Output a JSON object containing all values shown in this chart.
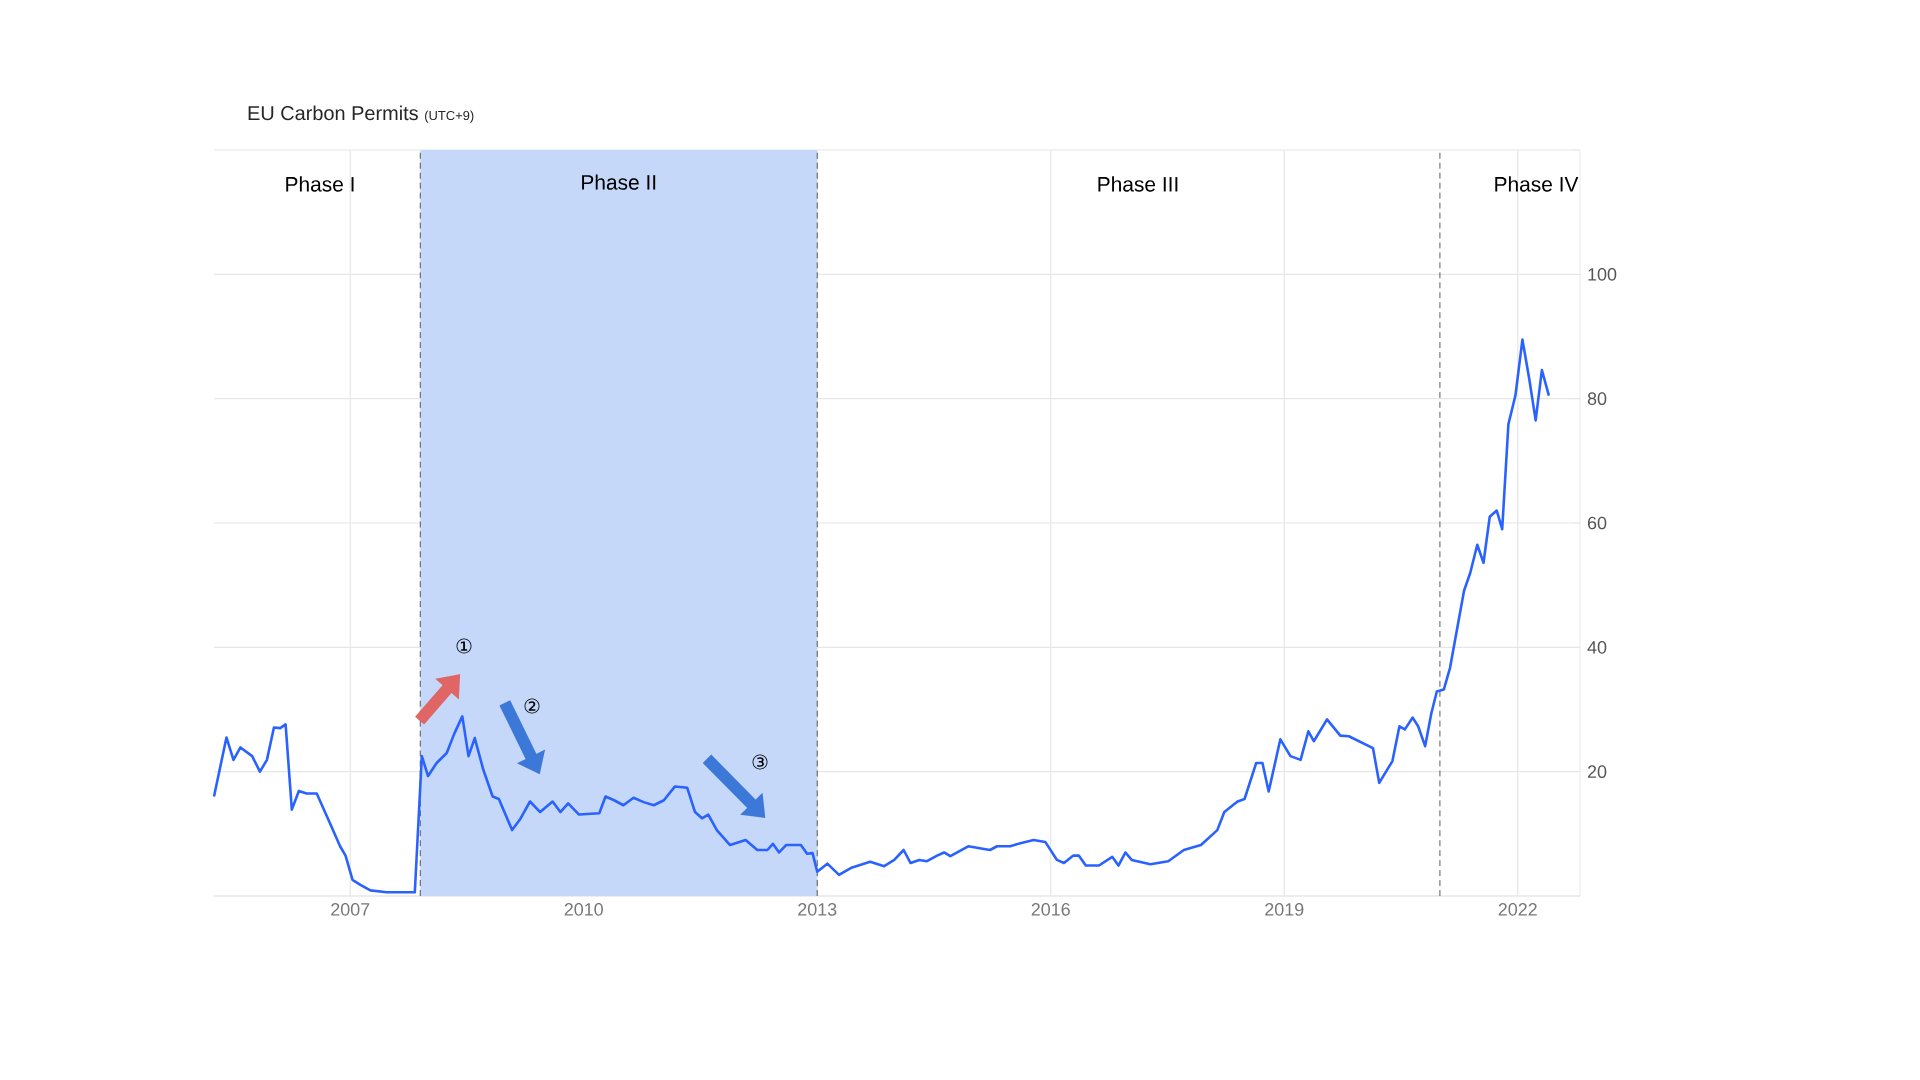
{
  "chart_data": {
    "type": "line",
    "title": "EU Carbon Permits",
    "subtitle": "(UTC+9)",
    "x": [
      2005.25,
      2005.41,
      2005.5,
      2005.59,
      2005.74,
      2005.84,
      2005.93,
      2006.02,
      2006.1,
      2006.17,
      2006.25,
      2006.34,
      2006.44,
      2006.57,
      2006.74,
      2006.87,
      2006.94,
      2007.03,
      2007.13,
      2007.26,
      2007.47,
      2007.83,
      2007.92,
      2008.0,
      2008.11,
      2008.24,
      2008.34,
      2008.44,
      2008.52,
      2008.6,
      2008.71,
      2008.83,
      2008.91,
      2009.08,
      2009.18,
      2009.31,
      2009.44,
      2009.6,
      2009.7,
      2009.8,
      2009.94,
      2010.2,
      2010.28,
      2010.39,
      2010.51,
      2010.64,
      2010.77,
      2010.9,
      2011.03,
      2011.17,
      2011.33,
      2011.43,
      2011.52,
      2011.6,
      2011.71,
      2011.88,
      2012.08,
      2012.23,
      2012.36,
      2012.43,
      2012.51,
      2012.6,
      2012.79,
      2012.87,
      2012.94,
      2013.0,
      2013.13,
      2013.28,
      2013.43,
      2013.68,
      2013.86,
      2013.99,
      2014.11,
      2014.2,
      2014.31,
      2014.41,
      2014.54,
      2014.63,
      2014.71,
      2014.94,
      2015.22,
      2015.31,
      2015.48,
      2015.61,
      2015.78,
      2015.93,
      2016.08,
      2016.17,
      2016.29,
      2016.36,
      2016.45,
      2016.62,
      2016.79,
      2016.87,
      2016.96,
      2017.04,
      2017.28,
      2017.51,
      2017.71,
      2017.93,
      2018.14,
      2018.23,
      2018.4,
      2018.49,
      2018.64,
      2018.72,
      2018.8,
      2018.95,
      2019.08,
      2019.21,
      2019.31,
      2019.38,
      2019.55,
      2019.72,
      2019.83,
      2020.14,
      2020.22,
      2020.39,
      2020.48,
      2020.55,
      2020.65,
      2020.72,
      2020.81,
      2020.89,
      2020.96,
      2021.05,
      2021.13,
      2021.22,
      2021.31,
      2021.39,
      2021.48,
      2021.56,
      2021.64,
      2021.73,
      2021.8,
      2021.88,
      2021.97,
      2022.06,
      2022.15,
      2022.23,
      2022.31,
      2022.4
    ],
    "series": [
      {
        "color": "#2962ff",
        "values": [
          16.0,
          25.5,
          21.9,
          23.9,
          22.5,
          20.0,
          21.9,
          27.1,
          27.0,
          27.6,
          13.9,
          16.9,
          16.5,
          16.5,
          11.7,
          8.0,
          6.5,
          2.6,
          1.8,
          0.9,
          0.6,
          0.6,
          22.5,
          19.3,
          21.4,
          23.0,
          26.2,
          28.9,
          22.5,
          25.4,
          20.3,
          16.0,
          15.6,
          10.6,
          12.3,
          15.2,
          13.5,
          15.2,
          13.5,
          14.9,
          13.1,
          13.3,
          16.0,
          15.4,
          14.6,
          15.8,
          15.1,
          14.6,
          15.4,
          17.6,
          17.4,
          13.5,
          12.5,
          13.1,
          10.6,
          8.2,
          9.0,
          7.4,
          7.4,
          8.4,
          7.0,
          8.2,
          8.2,
          6.8,
          6.9,
          3.9,
          5.2,
          3.4,
          4.5,
          5.5,
          4.8,
          5.8,
          7.4,
          5.3,
          5.8,
          5.6,
          6.5,
          7.0,
          6.4,
          8.0,
          7.4,
          8.0,
          8.0,
          8.5,
          9.0,
          8.7,
          5.8,
          5.3,
          6.5,
          6.5,
          4.9,
          4.9,
          6.3,
          4.9,
          7.0,
          5.8,
          5.1,
          5.6,
          7.4,
          8.2,
          10.6,
          13.5,
          15.2,
          15.6,
          21.4,
          21.4,
          16.8,
          25.2,
          22.5,
          21.9,
          26.5,
          24.9,
          28.4,
          25.8,
          25.7,
          23.8,
          18.2,
          21.7,
          27.3,
          26.8,
          28.7,
          27.3,
          24.1,
          29.4,
          32.9,
          33.2,
          36.7,
          42.9,
          49.1,
          52.0,
          56.5,
          53.6,
          61.0,
          62.0,
          59.0,
          75.9,
          80.5,
          89.5,
          83.0,
          76.5,
          84.6,
          80.5
        ]
      }
    ],
    "xlim": [
      2005.25,
      2022.8
    ],
    "xticks": [
      2007,
      2010,
      2013,
      2016,
      2019,
      2022
    ],
    "ylim": [
      0,
      120
    ],
    "yticks": [
      {
        "value": 0,
        "label": null
      },
      20,
      40,
      60,
      80,
      100,
      {
        "value": 120,
        "label": null
      }
    ],
    "grid": true,
    "marker": "none",
    "line_style": "solid",
    "bands": [
      {
        "axis": "x",
        "from": 2007.9,
        "to": 2013,
        "label": "Phase II",
        "color": "#c5d8fa"
      }
    ],
    "ref_lines": [
      {
        "axis": "x",
        "value": 2007.9,
        "color": "#333333",
        "line_style": "dashed"
      },
      {
        "axis": "x",
        "value": 2013,
        "color": "#333333",
        "line_style": "dashed"
      },
      {
        "axis": "x",
        "value": 2021,
        "color": "#333333",
        "line_style": "dashed"
      }
    ],
    "annotations": [
      "Phase I",
      "Phase III",
      "Phase IV",
      "①",
      "②",
      "③"
    ]
  }
}
